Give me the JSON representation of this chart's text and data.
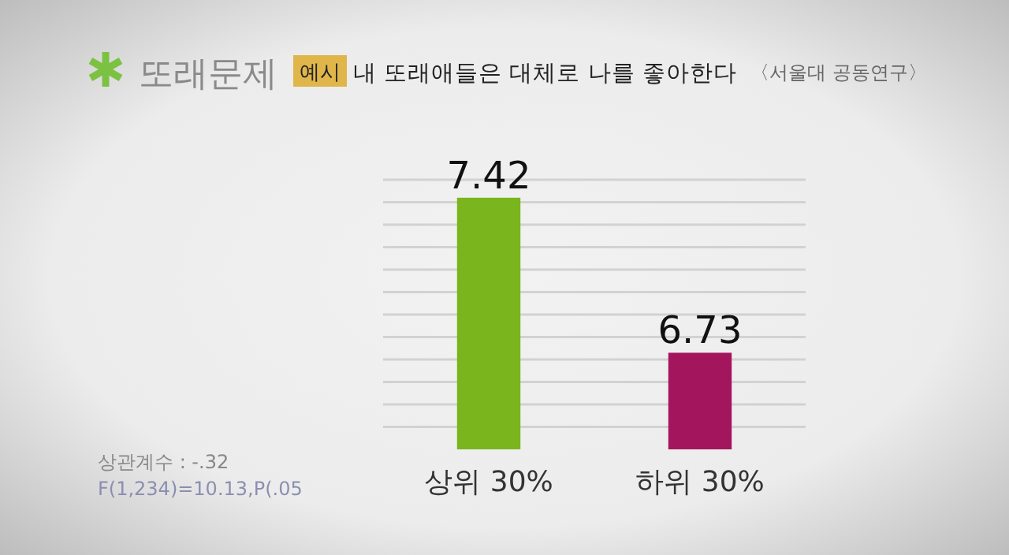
{
  "chart_data": {
    "type": "bar",
    "title": "또래문제",
    "subtitle": "내 또래애들은 대체로 나를 좋아한다",
    "annotations": [
      "예시",
      "〈서울대 공동연구〉",
      "상관계수 : -.32",
      "F(1,234)=10.13,P(.05"
    ],
    "categories": [
      "상위 30%",
      "하위 30%"
    ],
    "values": [
      7.42,
      6.73
    ],
    "colors": [
      "#7ab51d",
      "#a3165e"
    ],
    "ylim": [
      6.3,
      7.5
    ],
    "yticks": [
      {
        "value": 6.4,
        "label": null
      },
      {
        "value": 6.5,
        "label": null
      },
      {
        "value": 6.6,
        "label": null
      },
      {
        "value": 6.7,
        "label": null
      },
      {
        "value": 6.8,
        "label": null
      },
      {
        "value": 6.9,
        "label": null
      },
      {
        "value": 7.0,
        "label": null
      },
      {
        "value": 7.1,
        "label": null
      },
      {
        "value": 7.2,
        "label": null
      },
      {
        "value": 7.3,
        "label": null
      },
      {
        "value": 7.4,
        "label": null
      },
      {
        "value": 7.5,
        "label": null
      }
    ],
    "tick_labels": "x",
    "grid": "y",
    "data_labels": true
  }
}
